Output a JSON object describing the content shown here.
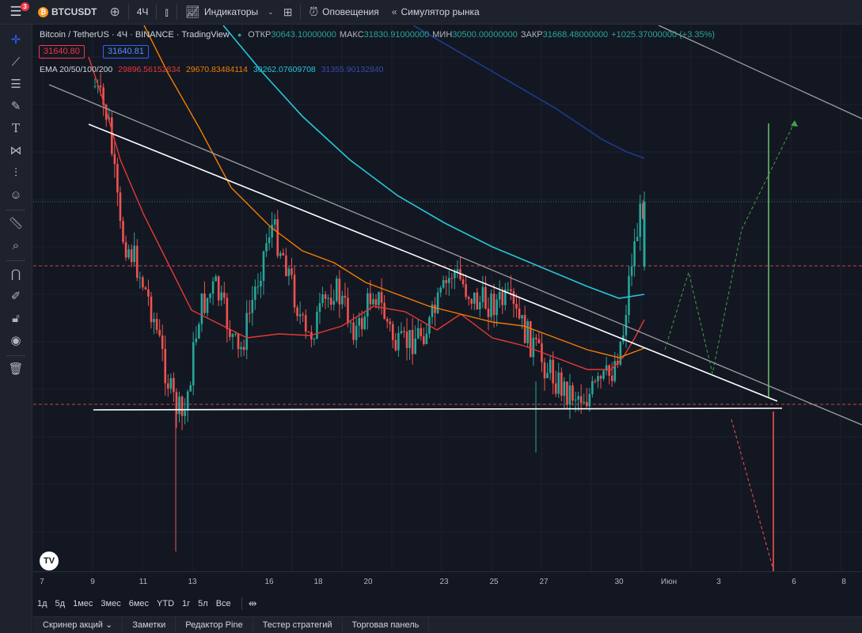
{
  "topbar": {
    "notification_count": "3",
    "symbol": "BTCUSDT",
    "interval": "4Ч",
    "indicators_label": "Индикаторы",
    "alerts_label": "Оповещения",
    "replay_label": "Симулятор рынка"
  },
  "legend": {
    "title": "Bitcoin / TetherUS · 4Ч · BINANCE · TradingView",
    "open_label": "ОТКР",
    "open_value": "30643.10000000",
    "high_label": "МАКС",
    "high_value": "31830.91000000",
    "low_label": "МИН",
    "low_value": "30500.00000000",
    "close_label": "ЗАКР",
    "close_value": "31668.48000000",
    "change": "+1025.37000000 (+3.35%)",
    "sell_price": "31640.80",
    "buy_price": "31640.81"
  },
  "ema": {
    "label": "EMA 20/50/100/200",
    "ema20": "29896.56152834",
    "ema50": "29670.83484114",
    "ema100": "30262.07609708",
    "ema200": "31355.90132840",
    "colors": {
      "ema20": "#e53935",
      "ema50": "#f57c00",
      "ema100": "#26c6da",
      "ema200": "#1a237e"
    }
  },
  "time_axis": [
    "7",
    "9",
    "11",
    "13",
    "16",
    "18",
    "20",
    "23",
    "25",
    "27",
    "30",
    "Июн",
    "3",
    "6",
    "8"
  ],
  "ranges": [
    "1д",
    "5д",
    "1мес",
    "3мес",
    "6мес",
    "YTD",
    "1г",
    "5л",
    "Все"
  ],
  "bottom_tabs": [
    "Скринер акций",
    "Заметки",
    "Редактор Pine",
    "Тестер стратегий",
    "Торговая панель"
  ],
  "chart_data": {
    "type": "candlestick",
    "symbol": "BTCUSDT",
    "interval": "4Ч",
    "last_close": 31668.48,
    "series": [
      {
        "name": "EMA 20",
        "color": "#e53935"
      },
      {
        "name": "EMA 50",
        "color": "#f57c00"
      },
      {
        "name": "EMA 100",
        "color": "#26c6da"
      },
      {
        "name": "EMA 200",
        "color": "#1a237e"
      }
    ],
    "colors": {
      "up": "#26a69a",
      "down": "#ef5350",
      "bullish_projection": "#43a047",
      "bearish_projection": "#ef5350"
    }
  }
}
